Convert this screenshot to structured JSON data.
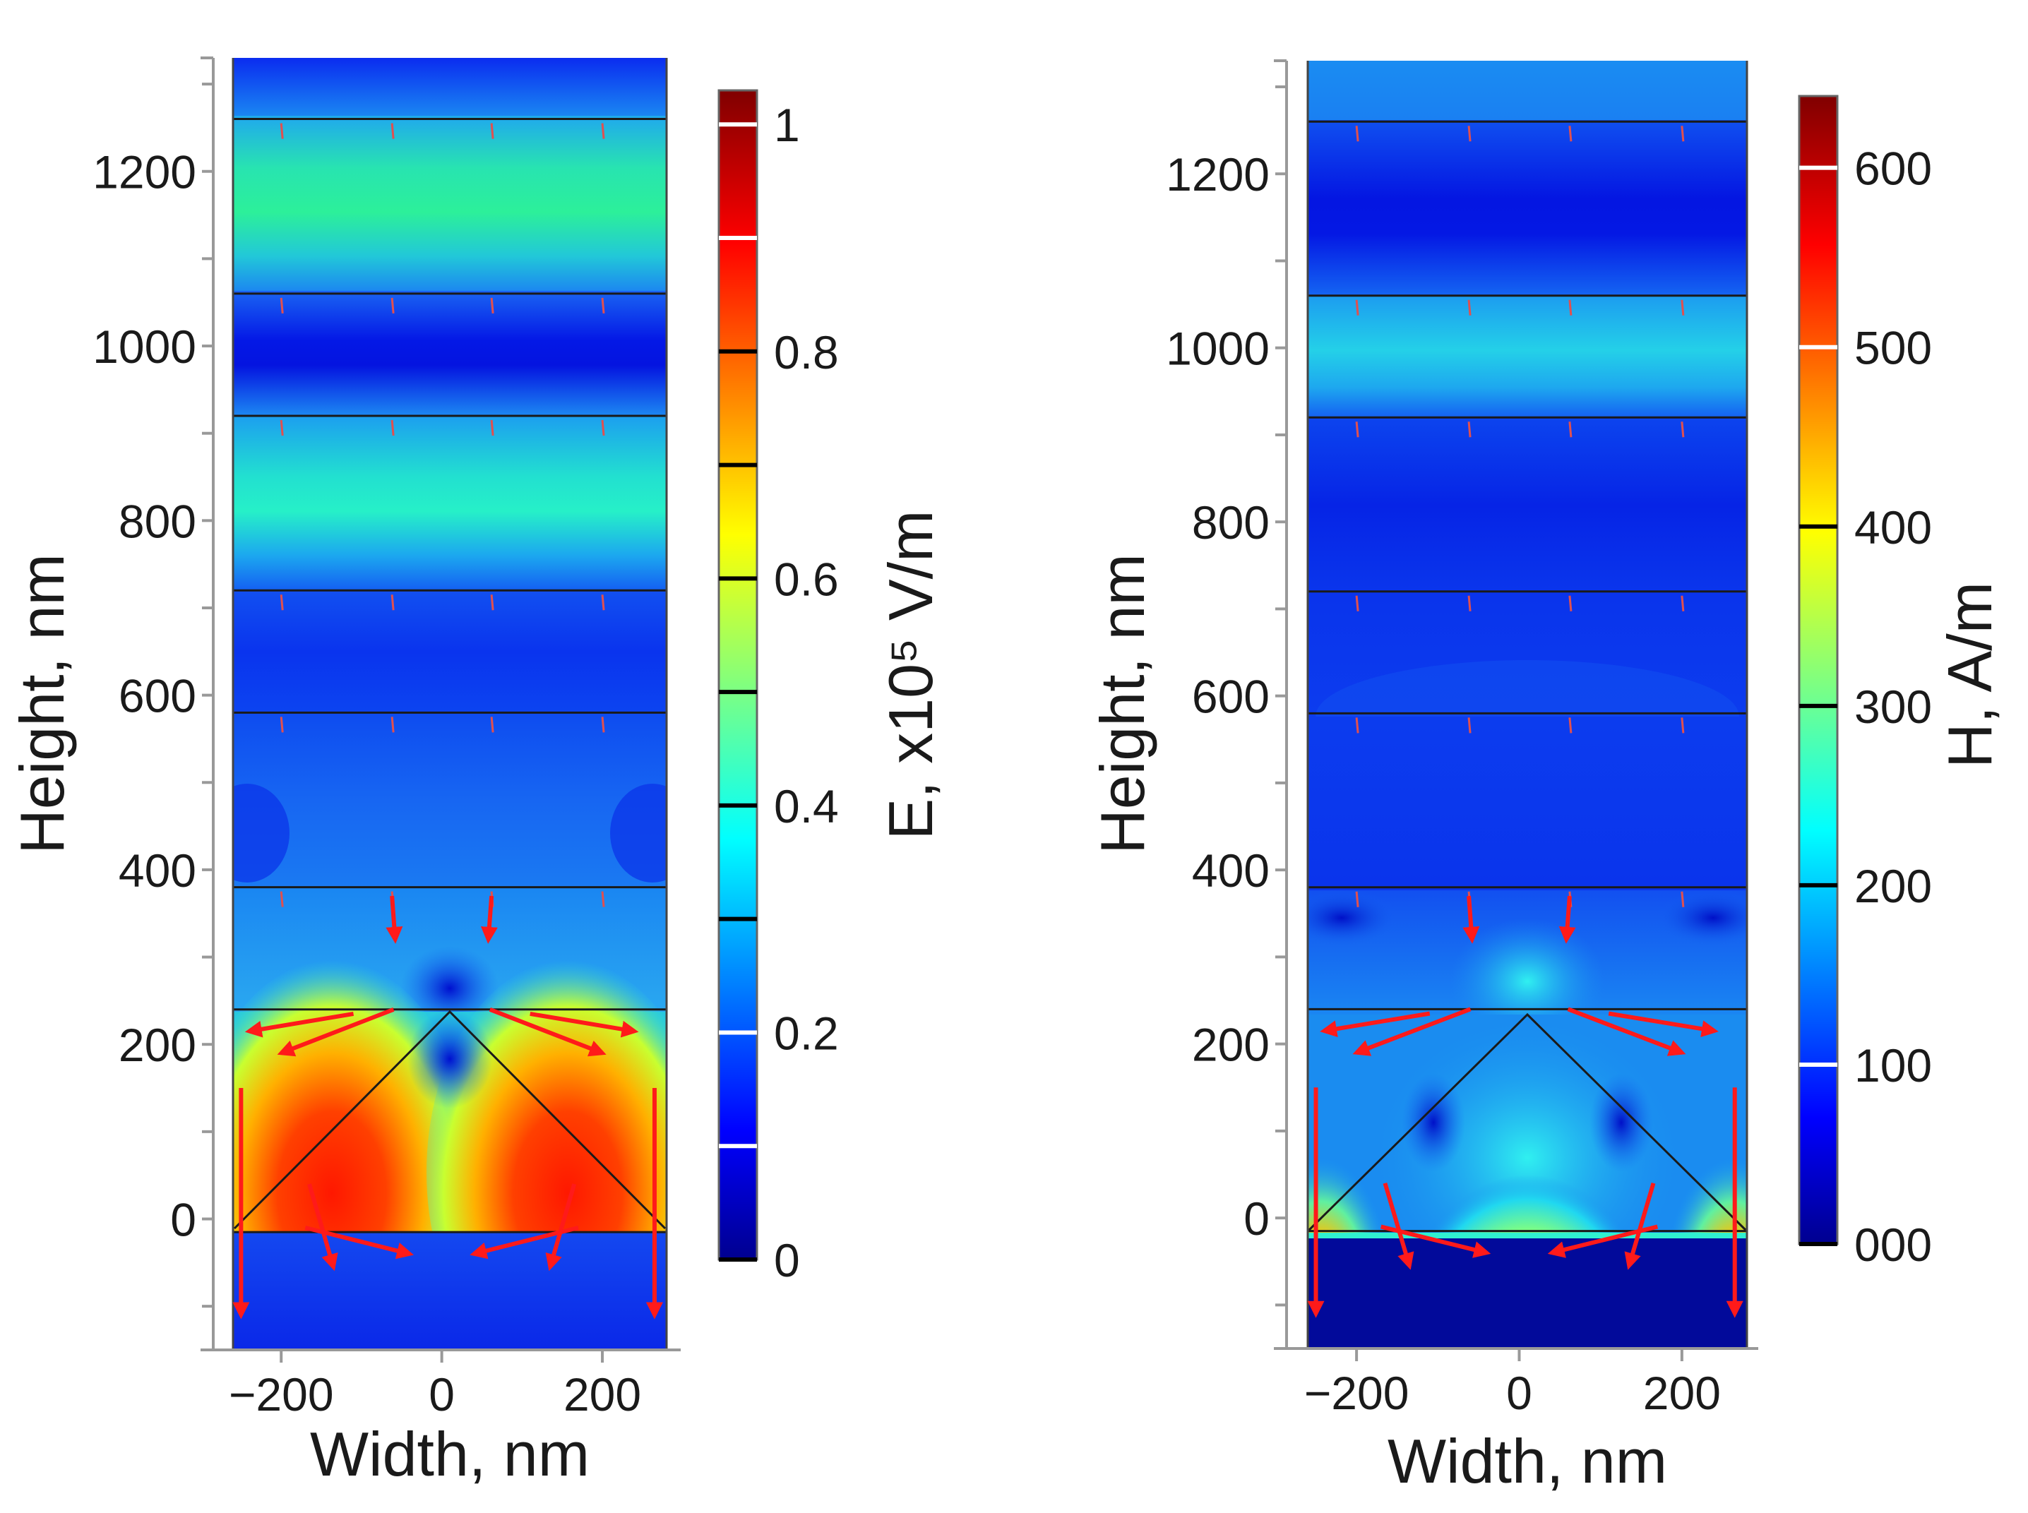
{
  "chart_data": [
    {
      "type": "heatmap",
      "panel": "left",
      "quantity": "E",
      "xlabel": "Width, nm",
      "ylabel": "Height, nm",
      "xlim": [
        -260,
        280
      ],
      "ylim": [
        -150,
        1330
      ],
      "x_ticks": [
        -200,
        0,
        200
      ],
      "x_tick_labels": [
        "−200",
        "0",
        "200"
      ],
      "y_ticks": [
        0,
        200,
        400,
        600,
        800,
        1000,
        1200
      ],
      "y_tick_labels": [
        "0",
        "200",
        "400",
        "600",
        "800",
        "1000",
        "1200"
      ],
      "layer_boundaries_nm": [
        -15,
        240,
        380,
        580,
        720,
        920,
        1060,
        1260
      ],
      "colorbar": {
        "title": "E, x10⁵ V/m",
        "min": 0,
        "max": 1.03,
        "ticks": [
          0,
          0.2,
          0.4,
          0.6,
          0.8,
          1
        ],
        "tick_labels": [
          "0",
          "0.2",
          "0.4",
          "0.6",
          "0.8",
          "1"
        ],
        "minor_ticks": [
          0.1,
          0.3,
          0.5,
          0.7,
          0.9
        ],
        "white_ticks": [
          0.1,
          0.2,
          0.9,
          1
        ]
      }
    },
    {
      "type": "heatmap",
      "panel": "right",
      "quantity": "H",
      "xlabel": "Width, nm",
      "ylabel": "Height, nm",
      "xlim": [
        -260,
        280
      ],
      "ylim": [
        -150,
        1330
      ],
      "x_ticks": [
        -200,
        0,
        200
      ],
      "x_tick_labels": [
        "−200",
        "0",
        "200"
      ],
      "y_ticks": [
        0,
        200,
        400,
        600,
        800,
        1000,
        1200
      ],
      "y_tick_labels": [
        "0",
        "200",
        "400",
        "600",
        "800",
        "1000",
        "1200"
      ],
      "layer_boundaries_nm": [
        -15,
        240,
        380,
        580,
        720,
        920,
        1060,
        1260
      ],
      "colorbar": {
        "title": "H, A/m",
        "min": 0,
        "max": 640,
        "ticks": [
          0,
          100,
          200,
          300,
          400,
          500,
          600
        ],
        "tick_labels": [
          "000",
          "100",
          "200",
          "300",
          "400",
          "500",
          "600"
        ],
        "minor_ticks": [],
        "white_ticks": [
          100,
          500,
          600
        ]
      }
    }
  ],
  "colors": {
    "low": "#00008f",
    "mid": "#00ffff",
    "high": "#800000",
    "arrow": "#ff1a1a",
    "layer_line": "#1a1a1a"
  }
}
